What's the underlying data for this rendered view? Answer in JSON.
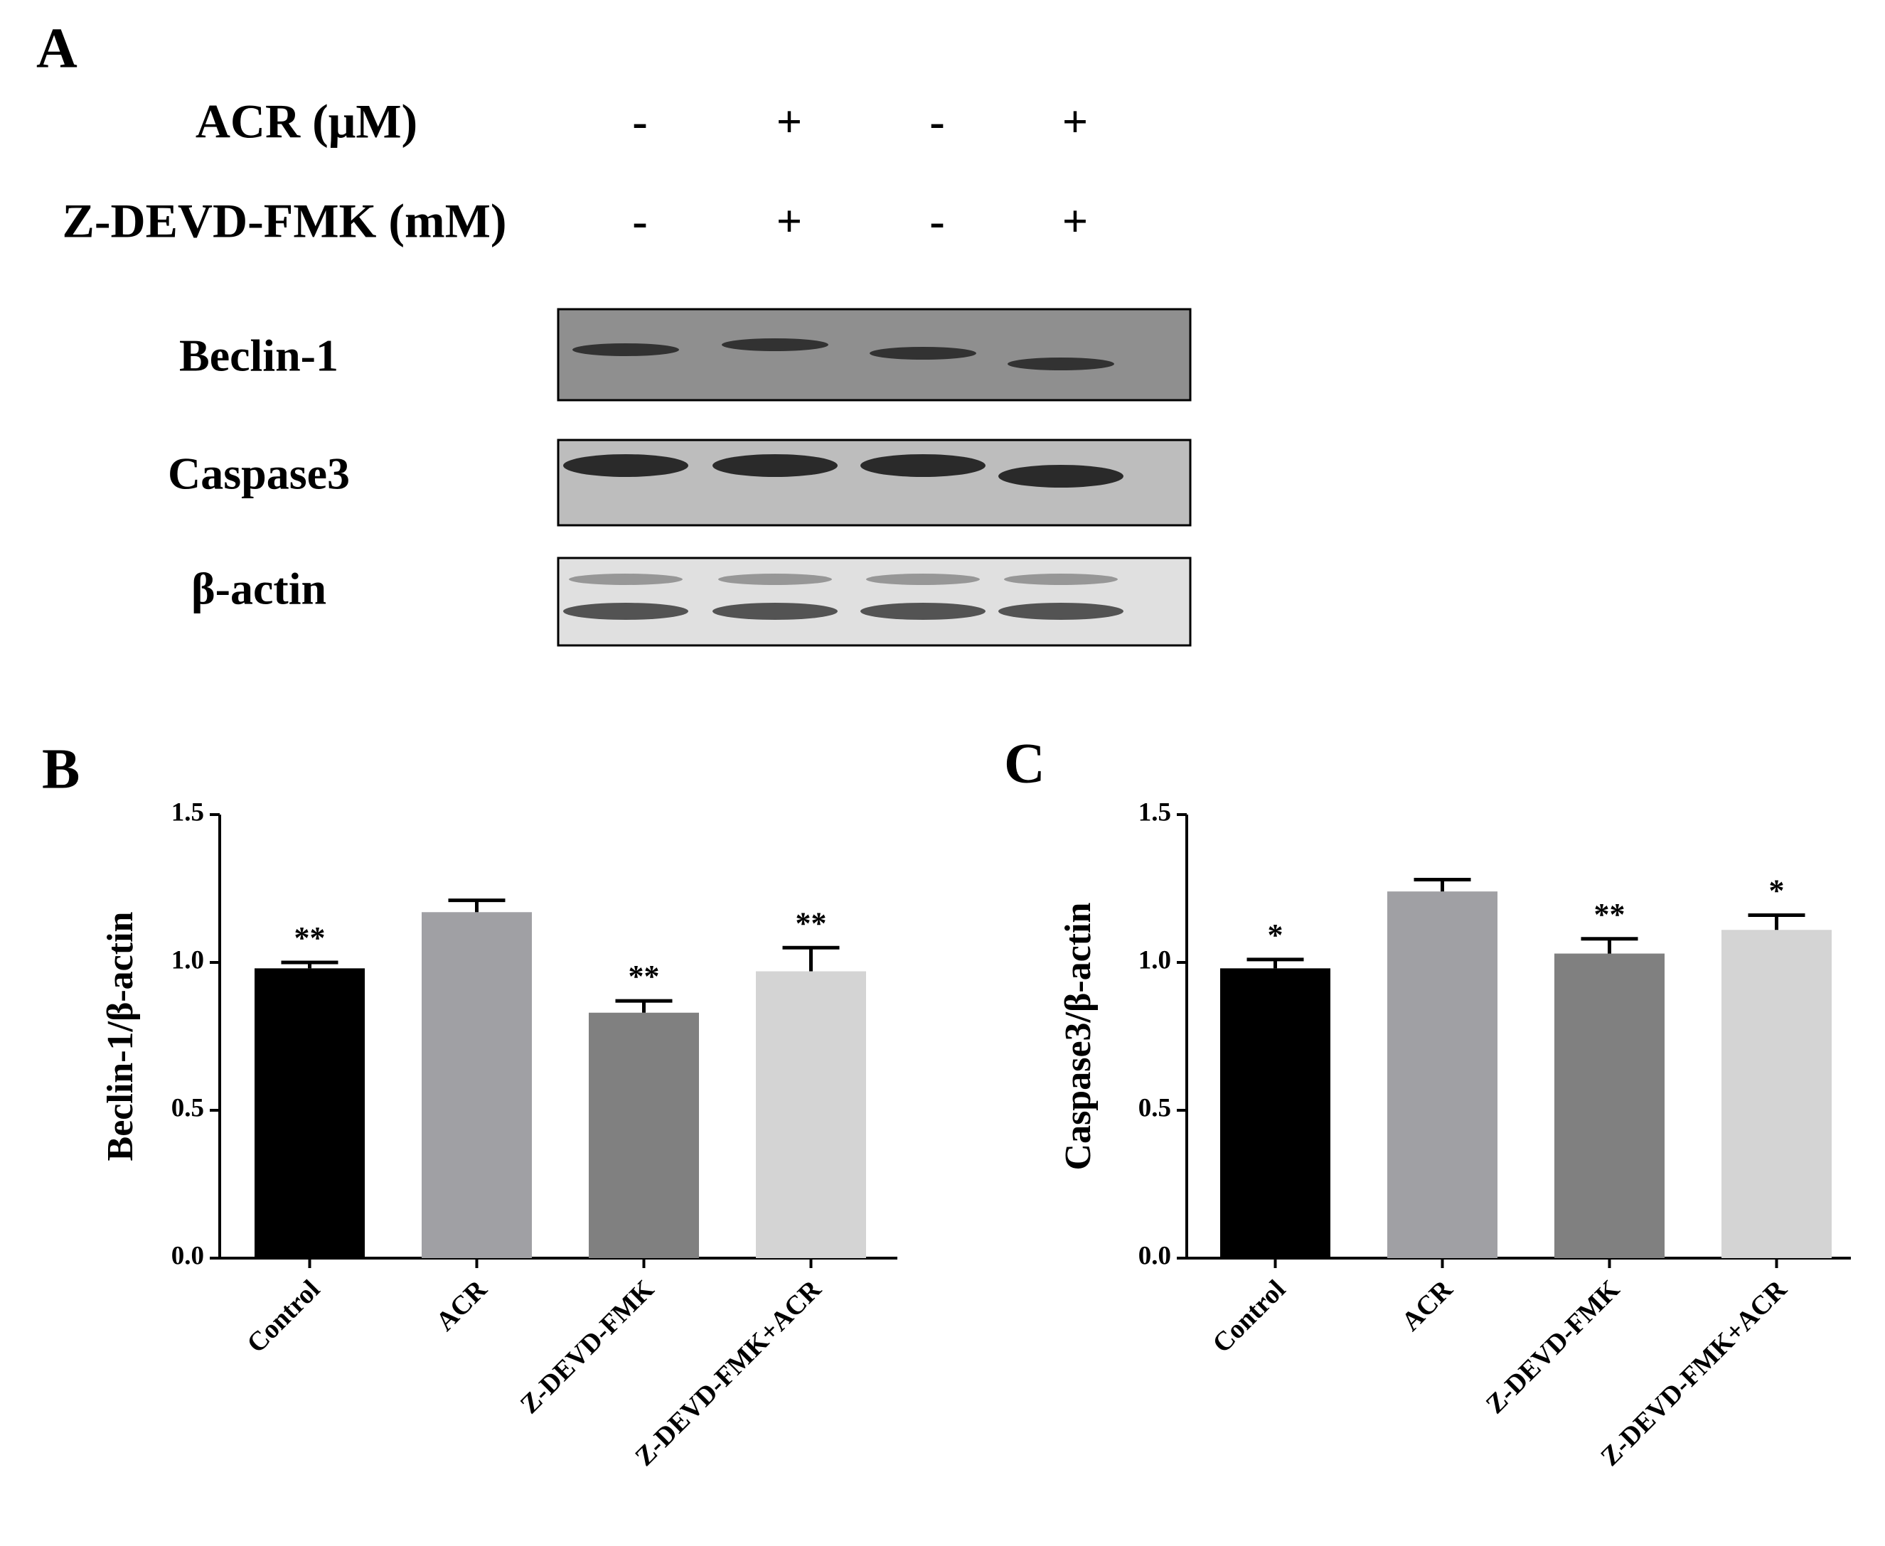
{
  "panel_labels": [
    "A",
    "B",
    "C"
  ],
  "blot": {
    "treatments": [
      {
        "label": "ACR (μM)",
        "signs": [
          "-",
          "+",
          "-",
          "+"
        ]
      },
      {
        "label": "Z-DEVD-FMK (mM)",
        "signs": [
          "-",
          "+",
          "-",
          "+"
        ]
      }
    ],
    "bands": [
      "Beclin-1",
      "Caspase3",
      "β-actin"
    ]
  },
  "chart_data": [
    {
      "type": "bar",
      "y_label": "Beclin-1/β-actin",
      "categories": [
        "Control",
        "ACR",
        "Z-DEVD-FMK",
        "Z-DEVD-FMK+ACR"
      ],
      "values": [
        0.98,
        1.17,
        0.83,
        0.97
      ],
      "errors": [
        0.02,
        0.04,
        0.04,
        0.08
      ],
      "significance": [
        "**",
        null,
        "**",
        "**"
      ],
      "colors": [
        "#000000",
        "#a0a0a4",
        "#808080",
        "#d4d4d4"
      ],
      "ylim": [
        0,
        1.5
      ],
      "yticks": [
        {
          "value": 0,
          "label": "0.0"
        },
        {
          "value": 0.5,
          "label": "0.5"
        },
        {
          "value": 1,
          "label": "1.0"
        },
        {
          "value": 1.5,
          "label": "1.5"
        }
      ]
    },
    {
      "type": "bar",
      "y_label": "Caspase3/β-actin",
      "categories": [
        "Control",
        "ACR",
        "Z-DEVD-FMK",
        "Z-DEVD-FMK+ACR"
      ],
      "values": [
        0.98,
        1.24,
        1.03,
        1.11
      ],
      "errors": [
        0.03,
        0.04,
        0.05,
        0.05
      ],
      "significance": [
        "*",
        null,
        "**",
        "*"
      ],
      "colors": [
        "#000000",
        "#a0a0a4",
        "#808080",
        "#d4d4d4"
      ],
      "ylim": [
        0,
        1.5
      ],
      "yticks": [
        {
          "value": 0,
          "label": "0.0"
        },
        {
          "value": 0.5,
          "label": "0.5"
        },
        {
          "value": 1,
          "label": "1.0"
        },
        {
          "value": 1.5,
          "label": "1.5"
        }
      ]
    }
  ]
}
